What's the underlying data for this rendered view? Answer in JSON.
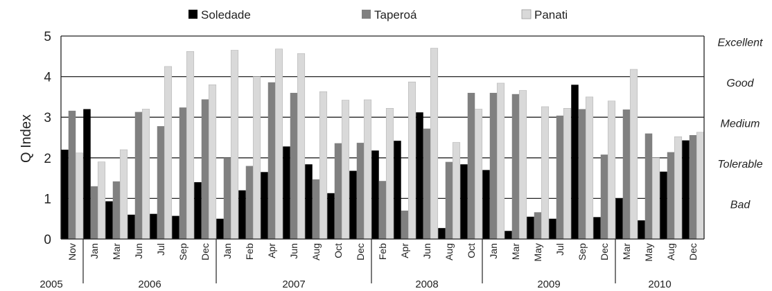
{
  "chart_data": {
    "type": "bar",
    "ylabel": "Q Index",
    "ylim": [
      0,
      5
    ],
    "yticks": [
      0,
      1,
      2,
      3,
      4,
      5
    ],
    "grid": true,
    "legend_position": "top",
    "categories": [
      "Nov",
      "Jan",
      "Mar",
      "Jun",
      "Jul",
      "Sep",
      "Dec",
      "Jan",
      "Feb",
      "Apr",
      "Jun",
      "Aug",
      "Oct",
      "Dec",
      "Feb",
      "Apr",
      "Jun",
      "Aug",
      "Oct",
      "Jan",
      "Mar",
      "May",
      "Jul",
      "Sep",
      "Dec",
      "Mar",
      "May",
      "Aug",
      "Dec"
    ],
    "year_groups": [
      {
        "label": "2005",
        "count": 1
      },
      {
        "label": "2006",
        "count": 6
      },
      {
        "label": "2007",
        "count": 7
      },
      {
        "label": "2008",
        "count": 5
      },
      {
        "label": "2009",
        "count": 6
      },
      {
        "label": "2010",
        "count": 4
      }
    ],
    "series": [
      {
        "name": "Soledade",
        "color": "#000000",
        "values": [
          2.2,
          3.2,
          0.93,
          0.6,
          0.62,
          0.57,
          1.4,
          0.5,
          1.2,
          1.65,
          2.28,
          1.84,
          1.13,
          1.68,
          2.18,
          2.42,
          3.12,
          0.27,
          1.84,
          1.7,
          0.2,
          0.55,
          0.5,
          3.8,
          0.54,
          1.0,
          0.46,
          1.66,
          2.43
        ]
      },
      {
        "name": "Taperoá",
        "color": "#808080",
        "values": [
          3.16,
          1.3,
          1.42,
          3.13,
          2.78,
          3.24,
          3.44,
          2.0,
          1.8,
          3.86,
          3.6,
          1.47,
          2.36,
          2.37,
          1.43,
          0.7,
          2.72,
          1.9,
          3.6,
          3.6,
          3.57,
          0.66,
          3.04,
          3.2,
          2.08,
          3.19,
          2.6,
          2.14,
          2.56
        ]
      },
      {
        "name": "Panati",
        "color": "#d9d9d9",
        "values": [
          2.12,
          1.9,
          2.2,
          3.2,
          4.25,
          4.62,
          3.8,
          4.65,
          4.0,
          4.68,
          4.57,
          3.63,
          3.42,
          3.43,
          3.22,
          3.87,
          4.7,
          2.38,
          3.2,
          3.84,
          3.66,
          3.26,
          3.22,
          3.5,
          3.4,
          4.18,
          2.0,
          2.52,
          2.63
        ]
      }
    ],
    "quality_labels": [
      {
        "label": "Excellent",
        "value": 4.5
      },
      {
        "label": "Good",
        "value": 3.5
      },
      {
        "label": "Medium",
        "value": 2.5
      },
      {
        "label": "Tolerable",
        "value": 1.5
      },
      {
        "label": "Bad",
        "value": 0.5
      }
    ]
  }
}
